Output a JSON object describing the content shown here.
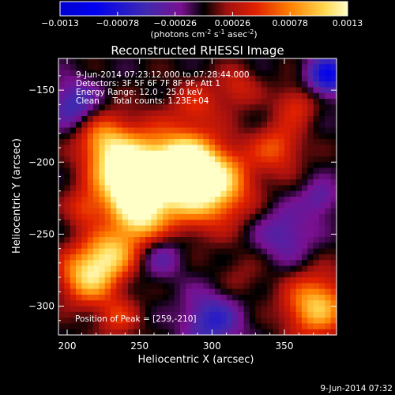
{
  "chart_data": {
    "type": "heatmap",
    "title": "Reconstructed RHESSI Image",
    "xlabel": "Heliocentric X (arcsec)",
    "ylabel": "Heliocentric Y (arcsec)",
    "xlim": [
      194,
      386
    ],
    "ylim": [
      -320,
      -128
    ],
    "xticks": [
      200,
      250,
      300,
      350
    ],
    "yticks": [
      -150,
      -200,
      -250,
      -300
    ],
    "colorbar": {
      "ticks": [
        "-0.0013",
        "-0.00078",
        "-0.00026",
        "0.00026",
        "0.00078",
        "0.0013"
      ],
      "range": [
        -0.0013,
        0.0013
      ],
      "unit_parts": [
        "(photons cm",
        "-2",
        " s",
        "-1",
        " asec",
        "-2",
        ")"
      ]
    },
    "annotations": [
      "9-Jun-2014 07:23:12.000 to 07:28:44.000",
      "Detectors: 3F 5F 6F 7F 8F 9F, Att 1",
      "Energy Range: 12.0 - 25.0 keV",
      "Clean     Total counts: 1.23E+04"
    ],
    "peak_label": "Position of Peak = [259,-210]",
    "timestamp": "9-Jun-2014 07:32",
    "sources": [
      {
        "x": 262,
        "y": -210,
        "amp": 1.0,
        "s": 22
      },
      {
        "x": 240,
        "y": -212,
        "amp": 0.85,
        "s": 15
      },
      {
        "x": 300,
        "y": -215,
        "amp": 0.95,
        "s": 18
      },
      {
        "x": 282,
        "y": -200,
        "amp": 0.55,
        "s": 12
      },
      {
        "x": 225,
        "y": -185,
        "amp": 0.6,
        "s": 13
      },
      {
        "x": 215,
        "y": -278,
        "amp": 0.85,
        "s": 14
      },
      {
        "x": 232,
        "y": -262,
        "amp": 0.6,
        "s": 12
      },
      {
        "x": 250,
        "y": -240,
        "amp": 0.55,
        "s": 12
      },
      {
        "x": 372,
        "y": -300,
        "amp": 0.8,
        "s": 15
      },
      {
        "x": 345,
        "y": -190,
        "amp": 0.45,
        "s": 12
      },
      {
        "x": 358,
        "y": -160,
        "amp": 0.35,
        "s": 10
      },
      {
        "x": 318,
        "y": -148,
        "amp": 0.3,
        "s": 10
      },
      {
        "x": 290,
        "y": -160,
        "amp": 0.3,
        "s": 12
      },
      {
        "x": 212,
        "y": -232,
        "amp": 0.35,
        "s": 9
      },
      {
        "x": 235,
        "y": -308,
        "amp": 0.35,
        "s": 10
      },
      {
        "x": 320,
        "y": -280,
        "amp": 0.15,
        "s": 12
      },
      {
        "x": 205,
        "y": -160,
        "amp": -0.45,
        "s": 12
      },
      {
        "x": 350,
        "y": -250,
        "amp": -0.35,
        "s": 14
      },
      {
        "x": 300,
        "y": -310,
        "amp": -0.5,
        "s": 14
      },
      {
        "x": 265,
        "y": -265,
        "amp": -0.3,
        "s": 11
      },
      {
        "x": 380,
        "y": -140,
        "amp": -0.7,
        "s": 10
      },
      {
        "x": 375,
        "y": -225,
        "amp": -0.3,
        "s": 9
      }
    ],
    "grid": false
  }
}
